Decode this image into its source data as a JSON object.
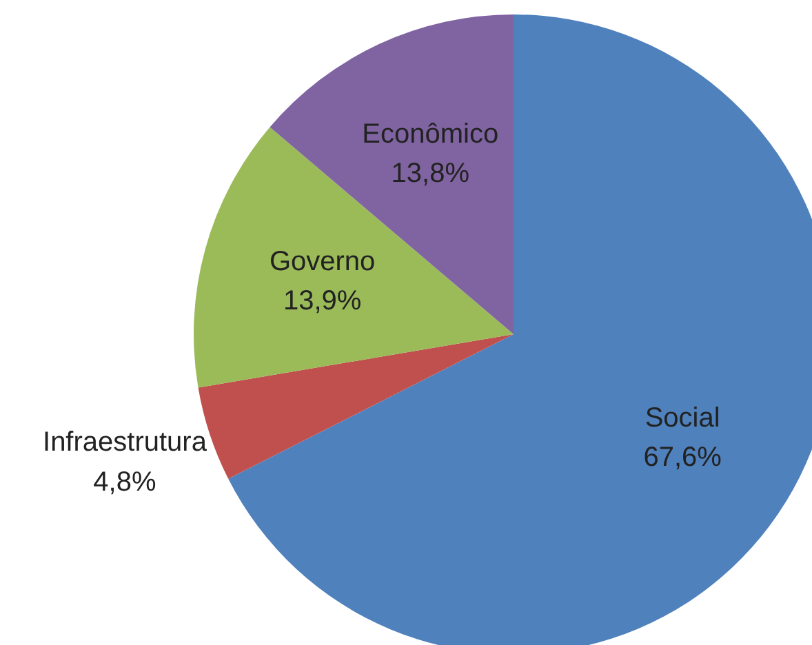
{
  "chart_data": {
    "type": "pie",
    "categories": [
      "Social",
      "Infraestrutura",
      "Governo",
      "Econômico"
    ],
    "values": [
      67.6,
      4.8,
      13.9,
      13.8
    ],
    "value_labels": [
      "67,6%",
      "4,8%",
      "13,9%",
      "13,8%"
    ],
    "colors": [
      "#4f81bd",
      "#c0504d",
      "#9bbb59",
      "#8064a2"
    ]
  }
}
